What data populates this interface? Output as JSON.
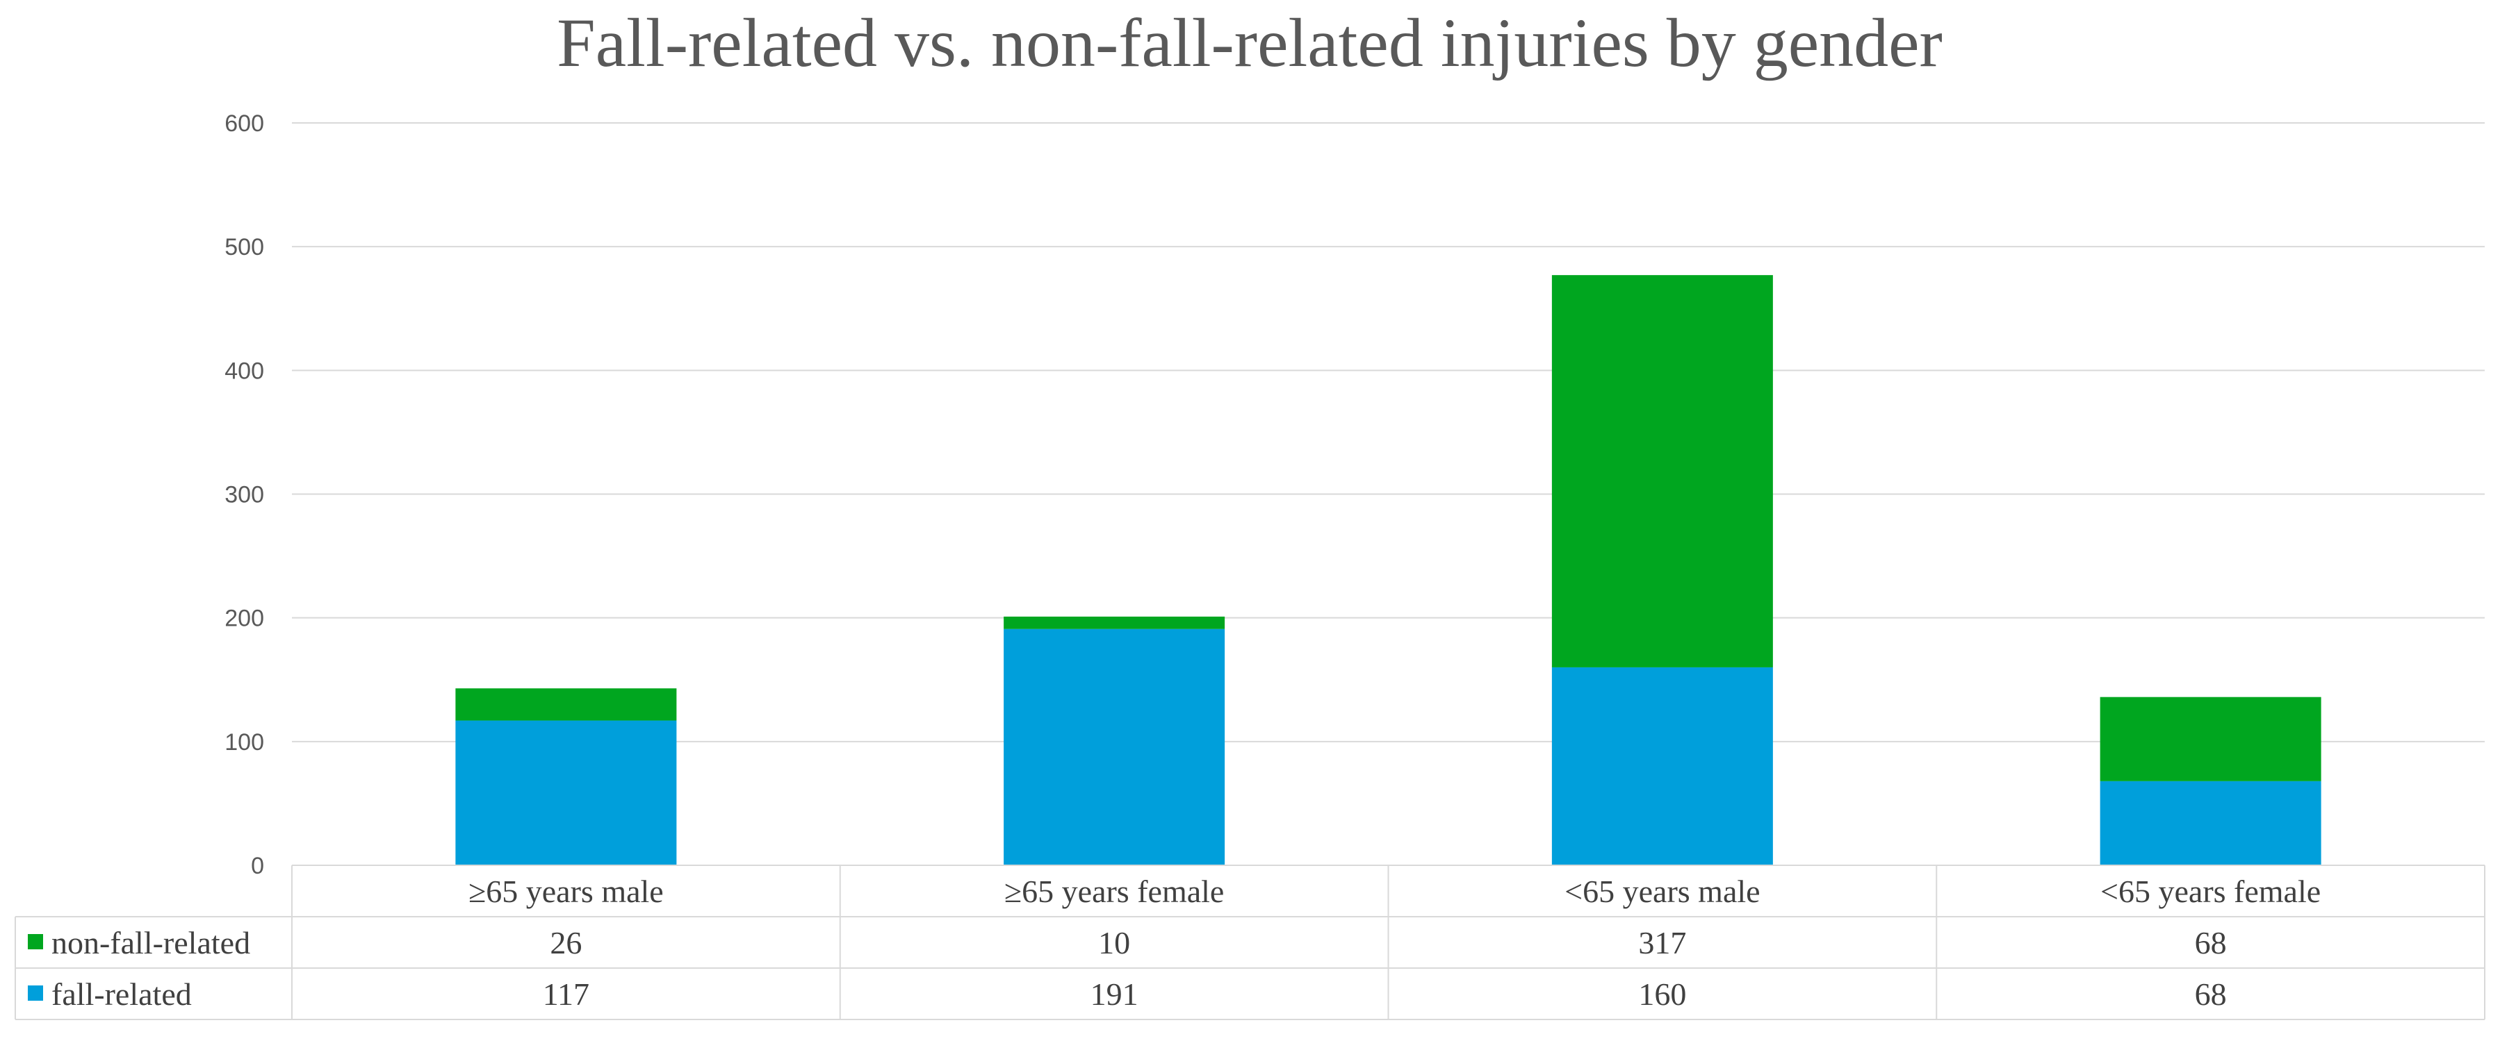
{
  "chart_data": {
    "type": "bar",
    "stacked": true,
    "title": "Fall-related vs. non-fall-related injuries by gender",
    "xlabel": "",
    "ylabel": "",
    "ylim": [
      0,
      600
    ],
    "yticks": [
      "0",
      "100",
      "200",
      "300",
      "400",
      "500",
      "600"
    ],
    "grid": true,
    "legend": "data-table",
    "categories": [
      "≥65 years male",
      "≥65 years female",
      "<65 years male",
      "<65 years female"
    ],
    "series": [
      {
        "name": "fall-related",
        "color": "#009fdb",
        "values": [
          117,
          191,
          160,
          68
        ]
      },
      {
        "name": "non-fall-related",
        "color": "#00a61f",
        "values": [
          26,
          10,
          317,
          68
        ]
      }
    ],
    "table_rows": [
      {
        "name": "non-fall-related",
        "color": "#00a61f",
        "values": [
          "26",
          "10",
          "317",
          "68"
        ]
      },
      {
        "name": "fall-related",
        "color": "#009fdb",
        "values": [
          "117",
          "191",
          "160",
          "68"
        ]
      }
    ]
  }
}
